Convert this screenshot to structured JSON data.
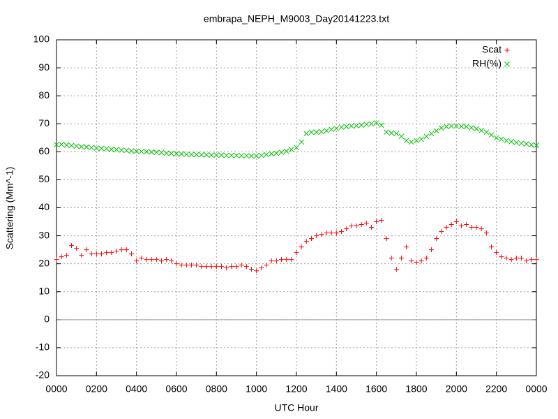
{
  "chart_data": {
    "type": "scatter",
    "title": "embrapa_NEPH_M9003_Day20141223.txt",
    "xlabel": "UTC Hour",
    "ylabel": "Scattering (Mm^-1)",
    "xlim": [
      0,
      24
    ],
    "ylim": [
      -20,
      100
    ],
    "xticks": [
      {
        "value": 0,
        "label": "0000"
      },
      {
        "value": 2,
        "label": "0200"
      },
      {
        "value": 4,
        "label": "0400"
      },
      {
        "value": 6,
        "label": "0600"
      },
      {
        "value": 8,
        "label": "0800"
      },
      {
        "value": 10,
        "label": "1000"
      },
      {
        "value": 12,
        "label": "1200"
      },
      {
        "value": 14,
        "label": "1400"
      },
      {
        "value": 16,
        "label": "1600"
      },
      {
        "value": 18,
        "label": "1800"
      },
      {
        "value": 20,
        "label": "2000"
      },
      {
        "value": 22,
        "label": "2200"
      },
      {
        "value": 24,
        "label": "0000"
      }
    ],
    "yticks": [
      -20,
      -10,
      0,
      10,
      20,
      30,
      40,
      50,
      60,
      70,
      80,
      90,
      100
    ],
    "grid": true,
    "zeroaxis": true,
    "legend": "upper right",
    "x": [
      0,
      0.25,
      0.5,
      0.75,
      1,
      1.25,
      1.5,
      1.75,
      2,
      2.25,
      2.5,
      2.75,
      3,
      3.25,
      3.5,
      3.75,
      4,
      4.25,
      4.5,
      4.75,
      5,
      5.25,
      5.5,
      5.75,
      6,
      6.25,
      6.5,
      6.75,
      7,
      7.25,
      7.5,
      7.75,
      8,
      8.25,
      8.5,
      8.75,
      9,
      9.25,
      9.5,
      9.75,
      10,
      10.25,
      10.5,
      10.75,
      11,
      11.25,
      11.5,
      11.75,
      12,
      12.25,
      12.5,
      12.75,
      13,
      13.25,
      13.5,
      13.75,
      14,
      14.25,
      14.5,
      14.75,
      15,
      15.25,
      15.5,
      15.75,
      16,
      16.25,
      16.5,
      16.75,
      17,
      17.25,
      17.5,
      17.75,
      18,
      18.25,
      18.5,
      18.75,
      19,
      19.25,
      19.5,
      19.75,
      20,
      20.25,
      20.5,
      20.75,
      21,
      21.25,
      21.5,
      21.75,
      22,
      22.25,
      22.5,
      22.75,
      23,
      23.25,
      23.5,
      23.75,
      24
    ],
    "series": [
      {
        "name": "Scat",
        "color": "#ff0000",
        "marker": "plus",
        "values": [
          21.5,
          22.5,
          23,
          26.5,
          25.5,
          23,
          25,
          23.5,
          23.5,
          23.5,
          24,
          24,
          24.5,
          25,
          25,
          23.5,
          21,
          22,
          21.5,
          21.5,
          21.5,
          21,
          21.5,
          21,
          20,
          19.5,
          19.5,
          19.5,
          19.5,
          19,
          19,
          19,
          19,
          19,
          18.5,
          19,
          19,
          19.5,
          19,
          18,
          17.5,
          18.5,
          19.5,
          21,
          21,
          21.5,
          21.5,
          21.5,
          24,
          26,
          28,
          29,
          30,
          30.5,
          31,
          31,
          31,
          31.5,
          32.5,
          33.5,
          33.5,
          34,
          34.5,
          33,
          35,
          35.5,
          29,
          22,
          18,
          22,
          26,
          21,
          20.5,
          21,
          22,
          25,
          29,
          31.5,
          33,
          34,
          35,
          33.5,
          34,
          33,
          33,
          32.5,
          31,
          26,
          24,
          22.5,
          22,
          21.5,
          22,
          22,
          21,
          21.5,
          21.5
        ]
      },
      {
        "name": "RH(%)",
        "color": "#00c000",
        "marker": "cross",
        "values": [
          62.5,
          62.6,
          62.4,
          62.2,
          62,
          61.8,
          61.7,
          61.5,
          61.3,
          61.2,
          61.1,
          60.9,
          60.8,
          60.6,
          60.5,
          60.3,
          60.2,
          60.1,
          60,
          59.9,
          59.8,
          59.7,
          59.5,
          59.4,
          59.3,
          59.2,
          59.1,
          59,
          59,
          58.9,
          58.9,
          58.8,
          58.8,
          58.8,
          58.7,
          58.7,
          58.7,
          58.6,
          58.6,
          58.5,
          58.5,
          58.7,
          59,
          59.3,
          59.5,
          59.8,
          60.2,
          60.8,
          61.5,
          63.5,
          66.5,
          67,
          67,
          67.2,
          67.5,
          68,
          68.3,
          68.8,
          69,
          69.2,
          69.3,
          69.5,
          69.8,
          70,
          70.3,
          69.5,
          67,
          66.7,
          66.5,
          65.5,
          64,
          63.5,
          64,
          64.5,
          65.5,
          66.5,
          67.5,
          68.5,
          69,
          69.2,
          69.2,
          69.1,
          69,
          68.6,
          68.2,
          67.6,
          67,
          66,
          65,
          64.5,
          64,
          63.6,
          63.3,
          63,
          62.8,
          62.5,
          62.3
        ]
      }
    ]
  }
}
